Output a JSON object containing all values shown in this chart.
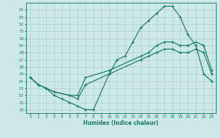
{
  "xlabel": "Humidex (Indice chaleur)",
  "ylabel": "",
  "bg_color": "#cce8e8",
  "grid_color": "#a8cccc",
  "line_color": "#1a7a6a",
  "xlim": [
    -0.5,
    23.5
  ],
  "ylim": [
    19.5,
    35.0
  ],
  "xticks": [
    0,
    1,
    2,
    3,
    4,
    5,
    6,
    7,
    8,
    9,
    10,
    11,
    12,
    13,
    14,
    15,
    16,
    17,
    18,
    19,
    20,
    21,
    22,
    23
  ],
  "yticks": [
    20,
    21,
    22,
    23,
    24,
    25,
    26,
    27,
    28,
    29,
    30,
    31,
    32,
    33,
    34
  ],
  "curve1_x": [
    0,
    1,
    2,
    3,
    4,
    5,
    6,
    7,
    8,
    10,
    11,
    12,
    13,
    14,
    15,
    16,
    17,
    18,
    19,
    20,
    21,
    22,
    23
  ],
  "curve1_y": [
    24.5,
    23.5,
    23.0,
    22.0,
    21.5,
    21.0,
    20.5,
    20.0,
    20.0,
    25.0,
    27.0,
    27.5,
    29.5,
    31.5,
    32.5,
    33.5,
    34.5,
    34.5,
    33.0,
    30.5,
    29.0,
    25.0,
    24.0
  ],
  "curve2_x": [
    0,
    1,
    2,
    3,
    5,
    6,
    7,
    10,
    14,
    15,
    16,
    17,
    18,
    19,
    20,
    21,
    22,
    23
  ],
  "curve2_y": [
    24.5,
    23.5,
    23.0,
    22.5,
    22.0,
    22.0,
    24.5,
    25.5,
    27.5,
    28.0,
    29.0,
    29.5,
    29.5,
    29.0,
    29.0,
    29.5,
    29.0,
    25.5
  ],
  "curve3_x": [
    0,
    1,
    2,
    3,
    5,
    6,
    7,
    10,
    14,
    15,
    16,
    17,
    18,
    19,
    20,
    21,
    22,
    23
  ],
  "curve3_y": [
    24.5,
    23.5,
    23.0,
    22.5,
    22.0,
    21.5,
    23.5,
    25.0,
    27.0,
    27.5,
    28.0,
    28.5,
    28.5,
    28.0,
    28.0,
    28.5,
    28.0,
    25.0
  ]
}
